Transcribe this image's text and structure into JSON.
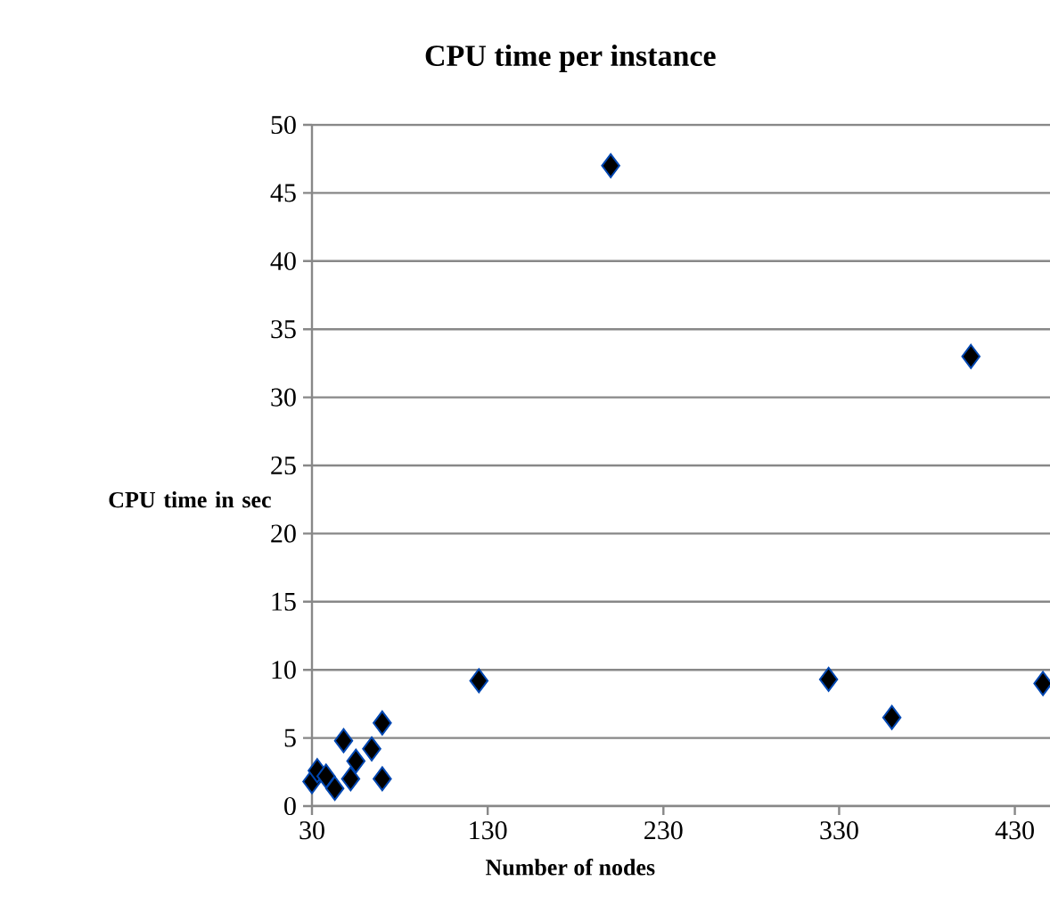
{
  "chart_data": {
    "type": "scatter",
    "title": "CPU time per instance",
    "xlabel": "Number of nodes",
    "ylabel": "CPU time in sec",
    "x": [
      30,
      33,
      38,
      43,
      48,
      52,
      55,
      64,
      70,
      70,
      125,
      200,
      324,
      360,
      405,
      446
    ],
    "values": [
      1.8,
      2.6,
      2.2,
      1.3,
      4.8,
      2.0,
      3.3,
      4.2,
      6.1,
      2.0,
      9.2,
      47,
      9.3,
      6.5,
      33,
      9.0
    ],
    "color": "#000000",
    "marker": "diamond",
    "grid": "y",
    "xlim": [
      30,
      450
    ],
    "xticks": [
      30,
      130,
      230,
      330,
      430
    ],
    "ylim": [
      0,
      50
    ],
    "yticks": [
      0,
      5,
      10,
      15,
      20,
      25,
      30,
      35,
      40,
      45,
      50
    ]
  }
}
